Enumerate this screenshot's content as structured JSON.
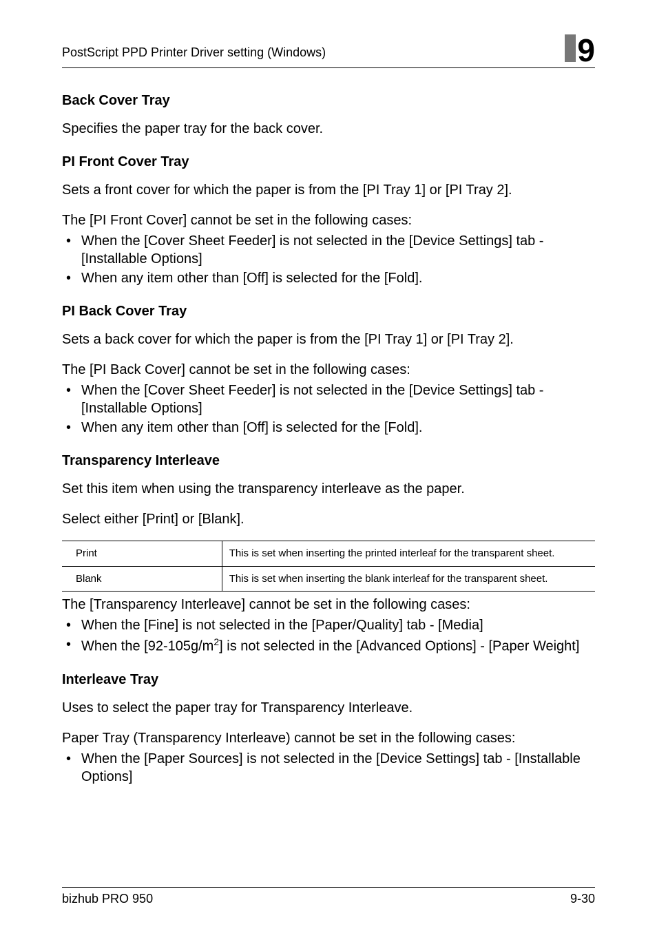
{
  "header": {
    "title": "PostScript PPD Printer Driver setting (Windows)",
    "chapter": "9"
  },
  "sections": {
    "back_cover_tray": {
      "heading": "Back Cover Tray",
      "desc": "Specifies the paper tray for the back cover."
    },
    "pi_front_cover_tray": {
      "heading": "PI Front Cover Tray",
      "desc": "Sets a front cover for which the paper is from the [PI Tray 1] or [PI Tray 2].",
      "note": "The [PI Front Cover] cannot be set in the following cases:",
      "bullets": [
        "When the [Cover Sheet Feeder] is not selected in the [Device Settings] tab - [Installable Options]",
        "When any item other than [Off] is selected for the [Fold]."
      ]
    },
    "pi_back_cover_tray": {
      "heading": "PI Back Cover Tray",
      "desc": "Sets a back cover for which the paper is from the [PI Tray 1] or [PI Tray 2].",
      "note": "The [PI Back Cover] cannot be set in the following cases:",
      "bullets": [
        "When the [Cover Sheet Feeder] is not selected in the [Device Settings] tab - [Installable Options]",
        "When any item other than [Off] is selected for the [Fold]."
      ]
    },
    "transparency_interleave": {
      "heading": "Transparency Interleave",
      "desc1": "Set this item when using the transparency interleave as the paper.",
      "desc2": "Select either [Print] or [Blank].",
      "table": {
        "rows": [
          {
            "label": "Print",
            "text": "This is set when inserting the printed interleaf for the transparent sheet."
          },
          {
            "label": "Blank",
            "text": "This is set when inserting the blank interleaf for the transparent sheet."
          }
        ]
      },
      "note": "The [Transparency Interleave] cannot be set in the following cases:",
      "bullet1": "When the [Fine] is not selected in the [Paper/Quality] tab - [Media]",
      "bullet2_pre": "When the [92-105g/m",
      "bullet2_post": "] is not selected in the [Advanced Options] - [Paper Weight]"
    },
    "interleave_tray": {
      "heading": "Interleave Tray",
      "desc": "Uses to select the paper tray for Transparency Interleave.",
      "note": "Paper Tray (Transparency Interleave) cannot be set in the following cases:",
      "bullets": [
        "When the [Paper Sources] is not selected in the [Device Settings] tab - [Installable Options]"
      ]
    }
  },
  "footer": {
    "product": "bizhub PRO 950",
    "pagenum": "9-30"
  }
}
